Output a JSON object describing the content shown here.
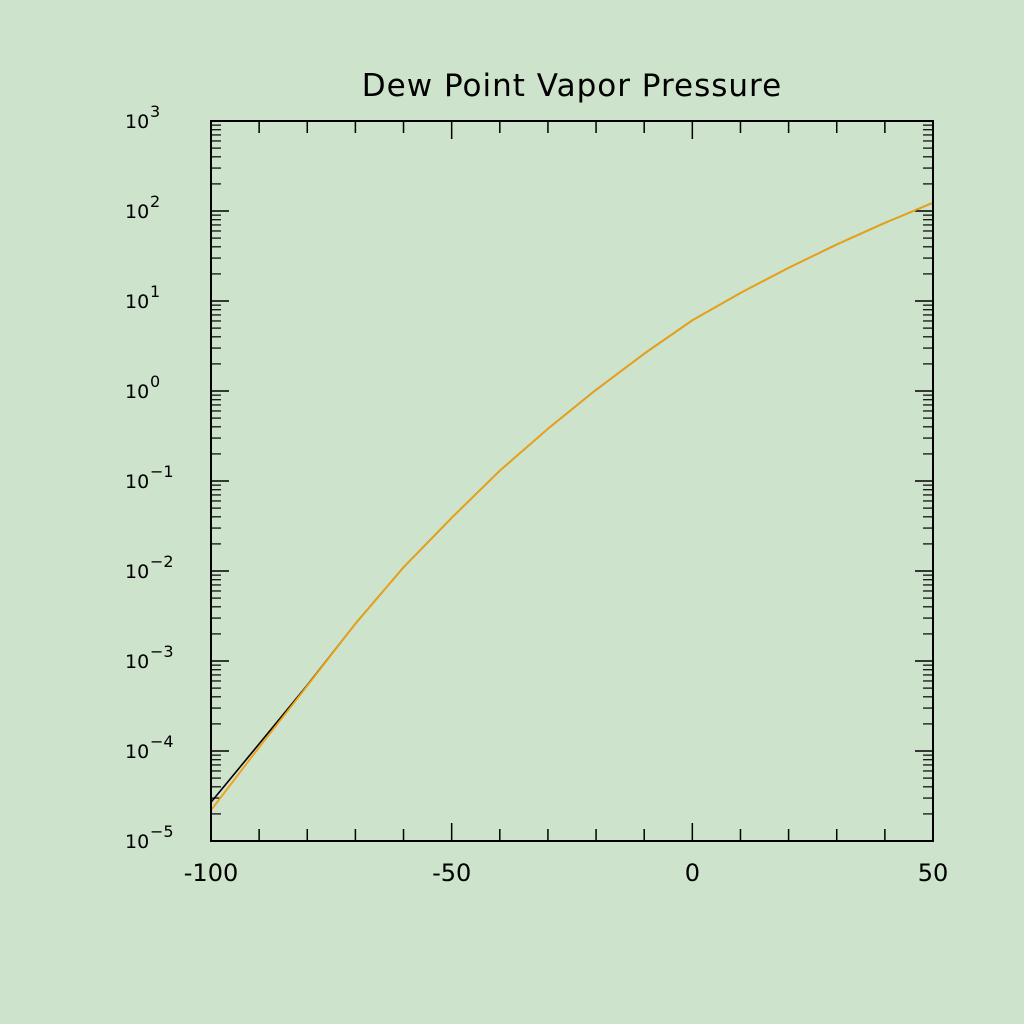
{
  "chart_data": {
    "type": "line",
    "title": "Dew Point Vapor Pressure",
    "xlabel": "",
    "ylabel": "",
    "xlim": [
      -100,
      50
    ],
    "ylim": [
      1e-05,
      1000
    ],
    "yscale": "log",
    "grid": false,
    "x_ticks": [
      "-100",
      "-50",
      "0",
      "50"
    ],
    "y_ticks": [
      {
        "base": "10",
        "exp": "-5"
      },
      {
        "base": "10",
        "exp": "-4"
      },
      {
        "base": "10",
        "exp": "-3"
      },
      {
        "base": "10",
        "exp": "-2"
      },
      {
        "base": "10",
        "exp": "-1"
      },
      {
        "base": "10",
        "exp": "0"
      },
      {
        "base": "10",
        "exp": "1"
      },
      {
        "base": "10",
        "exp": "2"
      },
      {
        "base": "10",
        "exp": "3"
      }
    ],
    "x": [
      -100,
      -90,
      -80,
      -70,
      -60,
      -50,
      -40,
      -30,
      -20,
      -10,
      0,
      10,
      20,
      30,
      40,
      50
    ],
    "series": [
      {
        "color": "#000000",
        "values": [
          2.7e-05,
          0.00012,
          0.00054,
          0.0026,
          0.011,
          0.039,
          0.13,
          0.38,
          1.03,
          2.6,
          6.1,
          12.3,
          23.4,
          42.4,
          73.8,
          123.4
        ]
      },
      {
        "color": "#f0a010",
        "values": [
          2.2e-05,
          0.00011,
          0.00053,
          0.0026,
          0.011,
          0.039,
          0.13,
          0.38,
          1.03,
          2.6,
          6.1,
          12.3,
          23.4,
          42.4,
          73.8,
          123.4
        ]
      }
    ]
  }
}
